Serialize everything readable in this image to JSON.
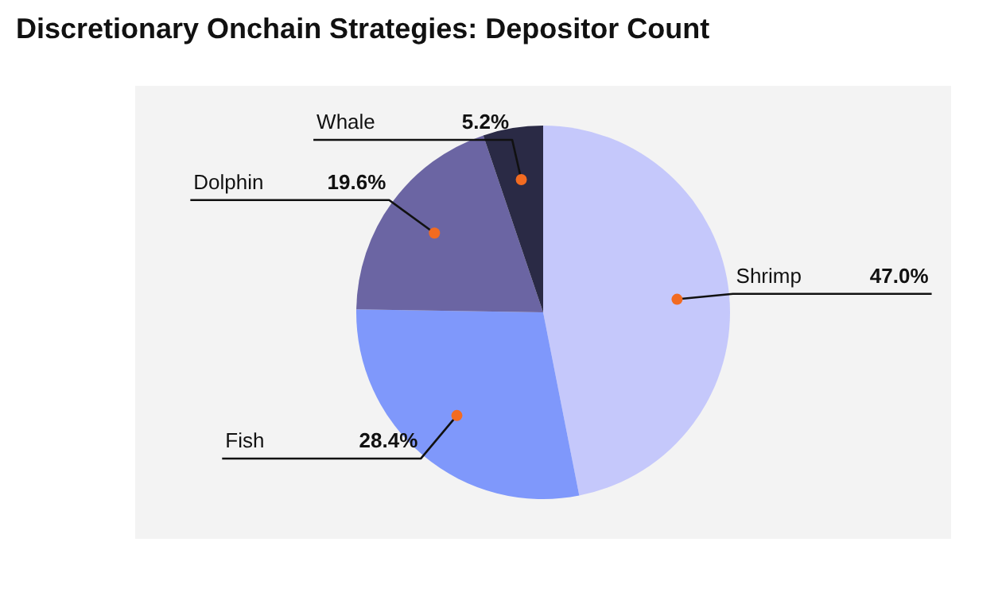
{
  "chart_data": {
    "type": "pie",
    "title": "Discretionary Onchain Strategies: Depositor Count",
    "categories": [
      "Shrimp",
      "Fish",
      "Dolphin",
      "Whale"
    ],
    "values": [
      47.0,
      28.4,
      19.6,
      5.2
    ],
    "value_labels": [
      "47.0%",
      "28.4%",
      "19.6%",
      "5.2%"
    ],
    "colors": [
      "#c5c8fb",
      "#7f98fb",
      "#6b65a3",
      "#2a2a45"
    ],
    "legend": false
  }
}
